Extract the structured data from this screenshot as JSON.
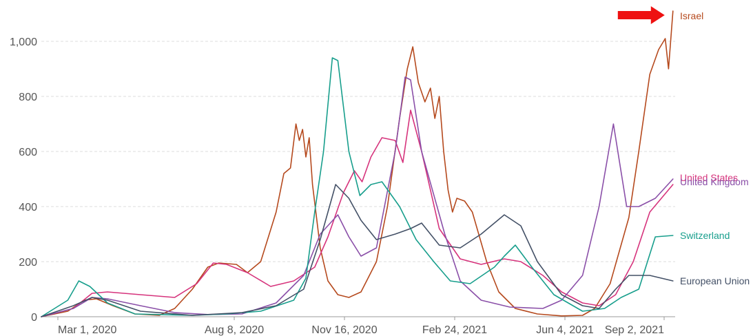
{
  "chart_data": {
    "type": "line",
    "ylim": [
      0,
      1100
    ],
    "y_ticks": [
      0,
      200,
      400,
      600,
      800,
      1000
    ],
    "y_tick_labels": [
      "0",
      "200",
      "400",
      "600",
      "800",
      "1,000"
    ],
    "x_range": [
      "2020-02-15",
      "2021-09-12"
    ],
    "x_ticks": [
      "2020-03-01",
      "2020-08-08",
      "2020-11-16",
      "2021-02-24",
      "2021-06-04",
      "2021-09-02"
    ],
    "x_tick_labels": [
      "Mar 1, 2020",
      "Aug 8, 2020",
      "Nov 16, 2020",
      "Feb 24, 2021",
      "Jun 4, 2021",
      "Sep 2, 2021"
    ],
    "grid": "horizontal",
    "legend": "inline-right",
    "annotation": {
      "type": "arrow",
      "target_series": "Israel",
      "color": "#ee1111"
    },
    "series": [
      {
        "name": "Israel",
        "color": "#b5491d",
        "points": [
          [
            "2020-02-15",
            0
          ],
          [
            "2020-03-10",
            20
          ],
          [
            "2020-03-25",
            60
          ],
          [
            "2020-04-05",
            65
          ],
          [
            "2020-04-20",
            40
          ],
          [
            "2020-05-10",
            10
          ],
          [
            "2020-06-01",
            5
          ],
          [
            "2020-06-15",
            30
          ],
          [
            "2020-07-01",
            100
          ],
          [
            "2020-07-15",
            180
          ],
          [
            "2020-07-25",
            195
          ],
          [
            "2020-08-10",
            190
          ],
          [
            "2020-08-20",
            160
          ],
          [
            "2020-09-01",
            200
          ],
          [
            "2020-09-15",
            380
          ],
          [
            "2020-09-22",
            520
          ],
          [
            "2020-09-28",
            540
          ],
          [
            "2020-10-03",
            700
          ],
          [
            "2020-10-06",
            640
          ],
          [
            "2020-10-09",
            680
          ],
          [
            "2020-10-12",
            580
          ],
          [
            "2020-10-15",
            650
          ],
          [
            "2020-10-18",
            480
          ],
          [
            "2020-10-25",
            250
          ],
          [
            "2020-11-01",
            130
          ],
          [
            "2020-11-10",
            80
          ],
          [
            "2020-11-20",
            70
          ],
          [
            "2020-12-01",
            90
          ],
          [
            "2020-12-15",
            200
          ],
          [
            "2020-12-25",
            400
          ],
          [
            "2021-01-05",
            720
          ],
          [
            "2021-01-12",
            900
          ],
          [
            "2021-01-17",
            980
          ],
          [
            "2021-01-22",
            850
          ],
          [
            "2021-01-28",
            780
          ],
          [
            "2021-02-02",
            830
          ],
          [
            "2021-02-06",
            720
          ],
          [
            "2021-02-10",
            800
          ],
          [
            "2021-02-14",
            600
          ],
          [
            "2021-02-18",
            460
          ],
          [
            "2021-02-22",
            380
          ],
          [
            "2021-02-26",
            430
          ],
          [
            "2021-03-05",
            420
          ],
          [
            "2021-03-12",
            380
          ],
          [
            "2021-03-25",
            200
          ],
          [
            "2021-04-05",
            90
          ],
          [
            "2021-04-20",
            30
          ],
          [
            "2021-05-10",
            10
          ],
          [
            "2021-06-01",
            3
          ],
          [
            "2021-06-20",
            5
          ],
          [
            "2021-07-01",
            30
          ],
          [
            "2021-07-15",
            120
          ],
          [
            "2021-08-01",
            360
          ],
          [
            "2021-08-10",
            600
          ],
          [
            "2021-08-20",
            880
          ],
          [
            "2021-08-28",
            970
          ],
          [
            "2021-09-03",
            1010
          ],
          [
            "2021-09-06",
            900
          ],
          [
            "2021-09-10",
            1110
          ]
        ]
      },
      {
        "name": "United States",
        "color": "#d6337c",
        "points": [
          [
            "2020-02-15",
            0
          ],
          [
            "2020-03-15",
            30
          ],
          [
            "2020-04-01",
            85
          ],
          [
            "2020-04-15",
            90
          ],
          [
            "2020-05-15",
            80
          ],
          [
            "2020-06-15",
            70
          ],
          [
            "2020-07-05",
            120
          ],
          [
            "2020-07-20",
            195
          ],
          [
            "2020-08-01",
            190
          ],
          [
            "2020-08-20",
            160
          ],
          [
            "2020-09-10",
            110
          ],
          [
            "2020-10-01",
            130
          ],
          [
            "2020-10-20",
            180
          ],
          [
            "2020-11-01",
            290
          ],
          [
            "2020-11-15",
            450
          ],
          [
            "2020-11-25",
            530
          ],
          [
            "2020-12-02",
            490
          ],
          [
            "2020-12-10",
            580
          ],
          [
            "2020-12-20",
            650
          ],
          [
            "2021-01-01",
            640
          ],
          [
            "2021-01-08",
            560
          ],
          [
            "2021-01-15",
            750
          ],
          [
            "2021-01-25",
            600
          ],
          [
            "2021-02-10",
            320
          ],
          [
            "2021-03-01",
            210
          ],
          [
            "2021-03-20",
            190
          ],
          [
            "2021-04-10",
            210
          ],
          [
            "2021-04-25",
            200
          ],
          [
            "2021-05-15",
            150
          ],
          [
            "2021-06-01",
            90
          ],
          [
            "2021-06-20",
            50
          ],
          [
            "2021-07-05",
            40
          ],
          [
            "2021-07-20",
            80
          ],
          [
            "2021-08-05",
            200
          ],
          [
            "2021-08-20",
            380
          ],
          [
            "2021-09-10",
            480
          ]
        ]
      },
      {
        "name": "United Kingdom",
        "color": "#8a4fa8",
        "points": [
          [
            "2020-02-15",
            0
          ],
          [
            "2020-03-15",
            30
          ],
          [
            "2020-04-01",
            70
          ],
          [
            "2020-04-15",
            65
          ],
          [
            "2020-05-15",
            40
          ],
          [
            "2020-06-15",
            15
          ],
          [
            "2020-07-15",
            8
          ],
          [
            "2020-08-15",
            10
          ],
          [
            "2020-09-15",
            50
          ],
          [
            "2020-10-10",
            150
          ],
          [
            "2020-10-25",
            300
          ],
          [
            "2020-11-10",
            370
          ],
          [
            "2020-11-20",
            290
          ],
          [
            "2020-12-01",
            220
          ],
          [
            "2020-12-15",
            250
          ],
          [
            "2021-01-01",
            600
          ],
          [
            "2021-01-10",
            870
          ],
          [
            "2021-01-15",
            860
          ],
          [
            "2021-01-25",
            600
          ],
          [
            "2021-02-15",
            300
          ],
          [
            "2021-03-01",
            130
          ],
          [
            "2021-03-20",
            60
          ],
          [
            "2021-04-15",
            35
          ],
          [
            "2021-05-15",
            30
          ],
          [
            "2021-06-01",
            60
          ],
          [
            "2021-06-20",
            150
          ],
          [
            "2021-07-05",
            400
          ],
          [
            "2021-07-18",
            700
          ],
          [
            "2021-07-30",
            400
          ],
          [
            "2021-08-10",
            400
          ],
          [
            "2021-08-25",
            430
          ],
          [
            "2021-09-10",
            500
          ]
        ]
      },
      {
        "name": "Switzerland",
        "color": "#179e8c",
        "points": [
          [
            "2020-02-15",
            0
          ],
          [
            "2020-03-10",
            60
          ],
          [
            "2020-03-20",
            130
          ],
          [
            "2020-03-30",
            110
          ],
          [
            "2020-04-15",
            50
          ],
          [
            "2020-05-10",
            10
          ],
          [
            "2020-07-01",
            5
          ],
          [
            "2020-08-01",
            10
          ],
          [
            "2020-09-01",
            20
          ],
          [
            "2020-10-01",
            60
          ],
          [
            "2020-10-12",
            140
          ],
          [
            "2020-10-20",
            380
          ],
          [
            "2020-10-28",
            600
          ],
          [
            "2020-11-05",
            940
          ],
          [
            "2020-11-10",
            930
          ],
          [
            "2020-11-20",
            600
          ],
          [
            "2020-11-30",
            440
          ],
          [
            "2020-12-10",
            480
          ],
          [
            "2020-12-20",
            490
          ],
          [
            "2021-01-05",
            400
          ],
          [
            "2021-01-20",
            280
          ],
          [
            "2021-02-05",
            200
          ],
          [
            "2021-02-20",
            130
          ],
          [
            "2021-03-10",
            120
          ],
          [
            "2021-04-01",
            180
          ],
          [
            "2021-04-10",
            220
          ],
          [
            "2021-04-20",
            260
          ],
          [
            "2021-05-05",
            180
          ],
          [
            "2021-05-25",
            80
          ],
          [
            "2021-06-20",
            20
          ],
          [
            "2021-07-10",
            30
          ],
          [
            "2021-07-25",
            70
          ],
          [
            "2021-08-10",
            100
          ],
          [
            "2021-08-25",
            290
          ],
          [
            "2021-09-10",
            295
          ]
        ]
      },
      {
        "name": "European Union",
        "color": "#435066",
        "points": [
          [
            "2020-02-15",
            0
          ],
          [
            "2020-03-15",
            40
          ],
          [
            "2020-04-01",
            70
          ],
          [
            "2020-04-15",
            60
          ],
          [
            "2020-05-15",
            20
          ],
          [
            "2020-07-01",
            5
          ],
          [
            "2020-08-15",
            15
          ],
          [
            "2020-09-15",
            40
          ],
          [
            "2020-10-10",
            100
          ],
          [
            "2020-10-25",
            280
          ],
          [
            "2020-11-08",
            480
          ],
          [
            "2020-11-20",
            430
          ],
          [
            "2020-12-01",
            350
          ],
          [
            "2020-12-15",
            280
          ],
          [
            "2021-01-01",
            300
          ],
          [
            "2021-01-15",
            320
          ],
          [
            "2021-01-25",
            340
          ],
          [
            "2021-02-10",
            260
          ],
          [
            "2021-03-01",
            250
          ],
          [
            "2021-03-20",
            300
          ],
          [
            "2021-04-10",
            370
          ],
          [
            "2021-04-25",
            330
          ],
          [
            "2021-05-10",
            200
          ],
          [
            "2021-06-01",
            80
          ],
          [
            "2021-06-20",
            40
          ],
          [
            "2021-07-05",
            30
          ],
          [
            "2021-07-20",
            100
          ],
          [
            "2021-08-01",
            150
          ],
          [
            "2021-08-20",
            150
          ],
          [
            "2021-09-10",
            130
          ]
        ]
      }
    ]
  }
}
